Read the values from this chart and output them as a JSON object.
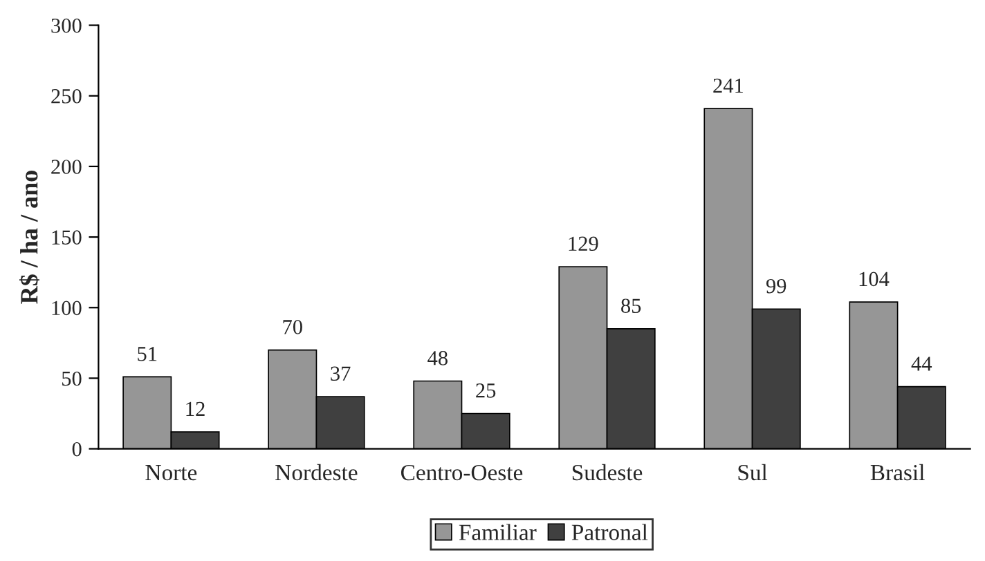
{
  "chart_data": {
    "type": "bar",
    "ylabel": "R$ / ha / ano",
    "categories": [
      "Norte",
      "Nordeste",
      "Centro-Oeste",
      "Sudeste",
      "Sul",
      "Brasil"
    ],
    "series": [
      {
        "name": "Familiar",
        "color": "#969696",
        "values": [
          51,
          70,
          48,
          129,
          241,
          104
        ]
      },
      {
        "name": "Patronal",
        "color": "#404040",
        "values": [
          12,
          37,
          25,
          85,
          99,
          44
        ]
      }
    ],
    "ylim": [
      0,
      300
    ],
    "yticks": [
      0,
      50,
      100,
      150,
      200,
      250,
      300
    ],
    "data_labels": true,
    "grid": false,
    "legend": "bottom"
  }
}
